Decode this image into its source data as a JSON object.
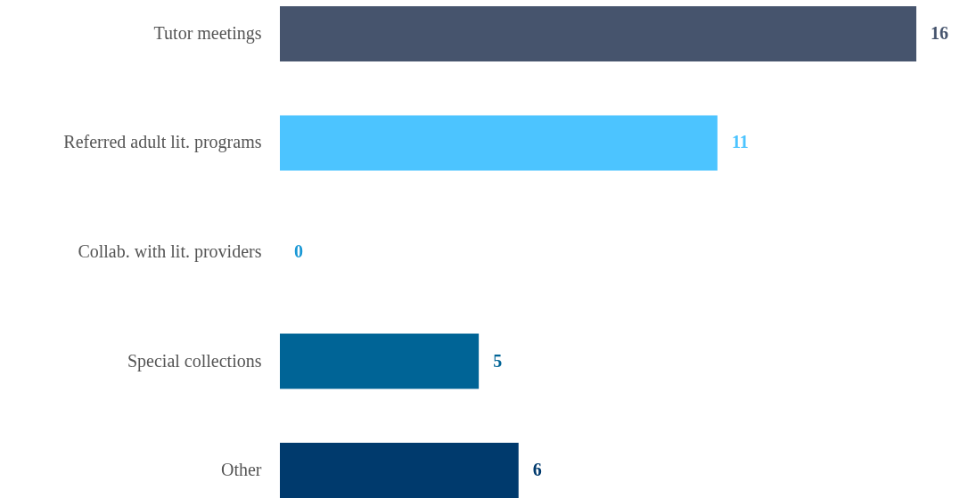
{
  "chart_data": {
    "type": "bar",
    "orientation": "horizontal",
    "categories": [
      "Tutor meetings",
      "Referred adult lit. programs",
      "Collab. with lit. providers",
      "Special collections",
      "Other"
    ],
    "values": [
      16,
      11,
      0,
      5,
      6
    ],
    "colors": [
      "#46546d",
      "#4cc4ff",
      "#1a98d5",
      "#006496",
      "#003a6d"
    ],
    "data_labels": true
  }
}
